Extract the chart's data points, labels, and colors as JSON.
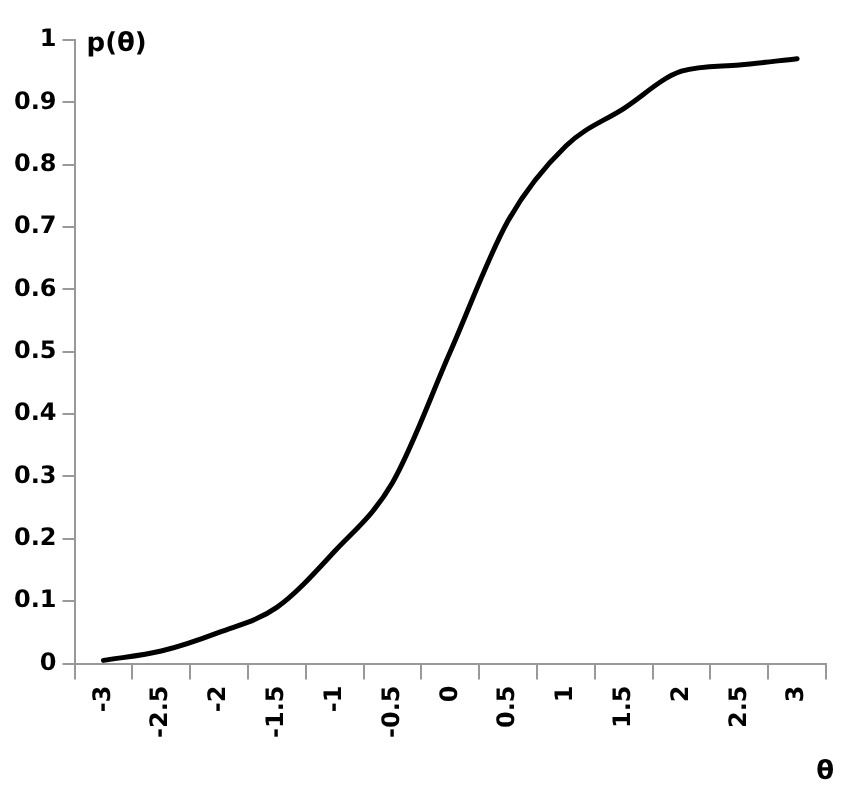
{
  "chart_data": {
    "type": "line",
    "xlabel": "θ",
    "ylabel": "p(θ)",
    "categories": [
      "-3",
      "-2.5",
      "-2",
      "-1.5",
      "-1",
      "-0.5",
      "0",
      "0.5",
      "1",
      "1.5",
      "2",
      "2.5",
      "3"
    ],
    "series": [
      {
        "color": "#000000",
        "values": [
          0.005,
          0.02,
          0.05,
          0.09,
          0.18,
          0.29,
          0.5,
          0.71,
          0.83,
          0.89,
          0.95,
          0.96,
          0.97
        ]
      }
    ],
    "ylim": [
      0,
      1
    ],
    "yticks": [
      0,
      0.1,
      0.2,
      0.3,
      0.4,
      0.5,
      0.6,
      0.7,
      0.8,
      0.9,
      1
    ],
    "grid": false,
    "legend": false,
    "marker": "none",
    "line_style": "solid"
  }
}
